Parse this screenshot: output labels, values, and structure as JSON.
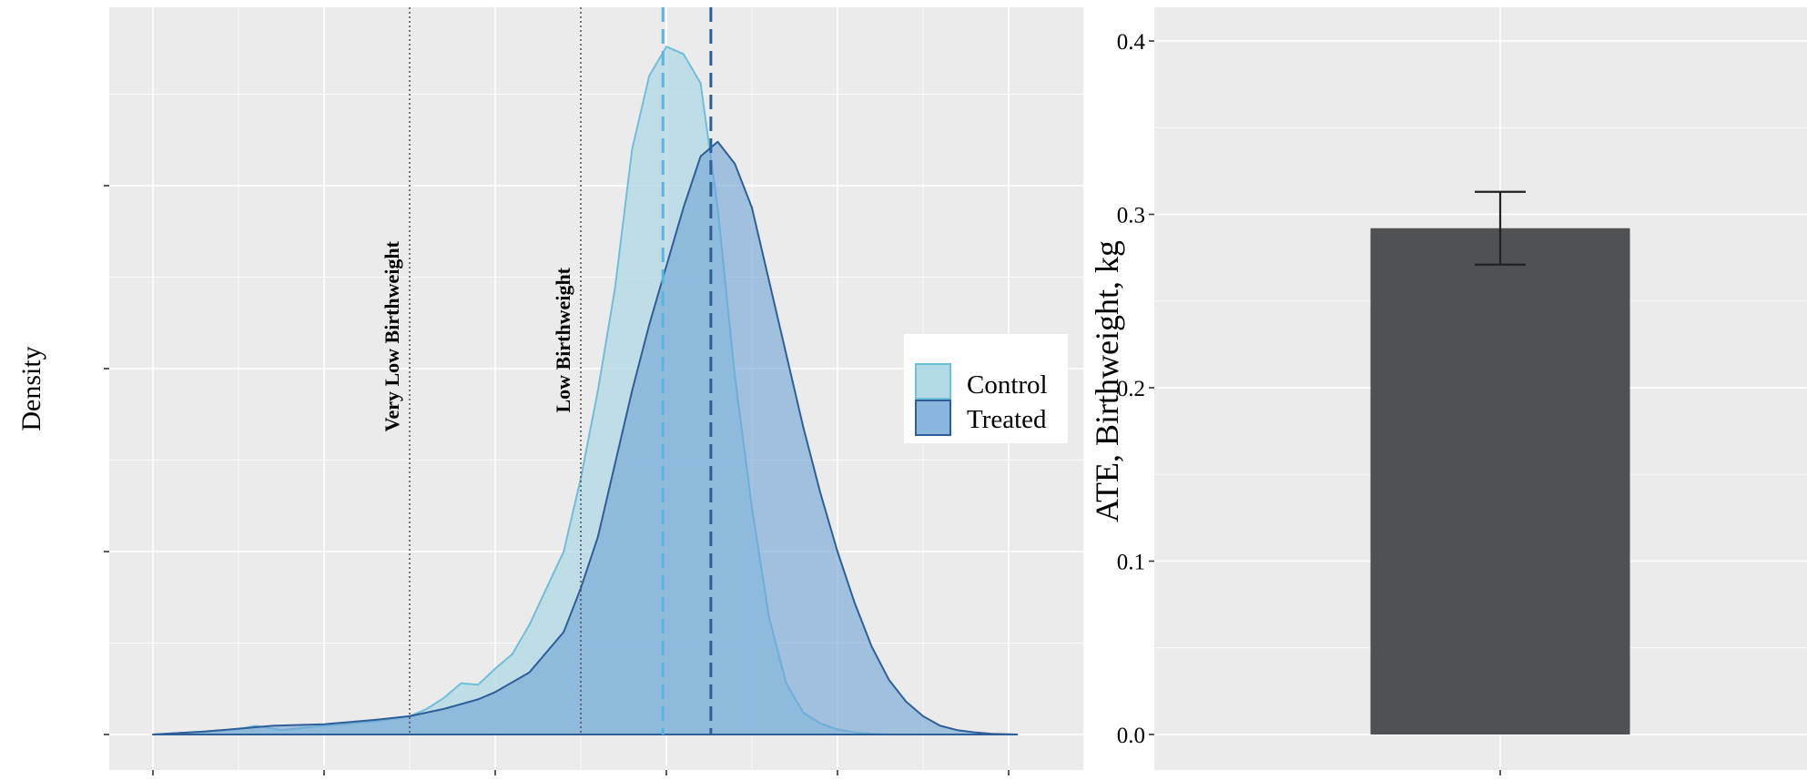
{
  "chart_data": [
    {
      "type": "area",
      "title": "",
      "xlabel": "",
      "ylabel": "Density",
      "xlim": [
        -0.2,
        5.2
      ],
      "ylim": [
        -0.01,
        1.0
      ],
      "grid": true,
      "legend_position": "right",
      "x_ticks": [
        0,
        1,
        2,
        3,
        4,
        5
      ],
      "y_ticks": [
        0,
        0.25,
        0.5,
        0.75
      ],
      "x_tick_labels_shown": false,
      "y_tick_labels_shown": false,
      "series": [
        {
          "name": "Control",
          "fill": "#b3dae6",
          "stroke": "#6fbfdb",
          "mean": 2.98,
          "x": [
            0.0,
            0.3,
            0.5,
            0.6,
            0.75,
            1.0,
            1.3,
            1.5,
            1.6,
            1.7,
            1.8,
            1.9,
            2.0,
            2.1,
            2.2,
            2.3,
            2.4,
            2.5,
            2.6,
            2.7,
            2.8,
            2.9,
            3.0,
            3.1,
            3.2,
            3.3,
            3.4,
            3.5,
            3.6,
            3.7,
            3.8,
            3.9,
            4.0,
            4.1,
            4.2,
            4.3
          ],
          "y": [
            0.0,
            0.004,
            0.007,
            0.012,
            0.006,
            0.012,
            0.018,
            0.025,
            0.035,
            0.05,
            0.07,
            0.068,
            0.09,
            0.11,
            0.15,
            0.2,
            0.25,
            0.35,
            0.47,
            0.61,
            0.8,
            0.9,
            0.94,
            0.93,
            0.89,
            0.72,
            0.49,
            0.31,
            0.16,
            0.07,
            0.03,
            0.015,
            0.007,
            0.003,
            0.001,
            0.0
          ]
        },
        {
          "name": "Treated",
          "fill": "#6ea4d6",
          "stroke": "#2f5f99",
          "mean": 3.26,
          "x": [
            0.0,
            0.3,
            0.5,
            0.7,
            1.0,
            1.3,
            1.5,
            1.7,
            1.9,
            2.0,
            2.2,
            2.4,
            2.5,
            2.6,
            2.7,
            2.8,
            2.9,
            3.0,
            3.1,
            3.2,
            3.3,
            3.4,
            3.5,
            3.6,
            3.7,
            3.8,
            3.9,
            4.0,
            4.1,
            4.2,
            4.3,
            4.4,
            4.5,
            4.6,
            4.7,
            4.8,
            4.9,
            5.05
          ],
          "y": [
            0.0,
            0.004,
            0.008,
            0.012,
            0.014,
            0.02,
            0.025,
            0.035,
            0.048,
            0.058,
            0.085,
            0.14,
            0.2,
            0.27,
            0.37,
            0.47,
            0.56,
            0.64,
            0.72,
            0.79,
            0.81,
            0.78,
            0.72,
            0.62,
            0.52,
            0.42,
            0.33,
            0.25,
            0.18,
            0.12,
            0.075,
            0.045,
            0.025,
            0.012,
            0.006,
            0.003,
            0.001,
            0.0
          ]
        }
      ],
      "reference_lines": [
        {
          "x": 1.5,
          "label": "Very Low Birthweight",
          "style": "dotted",
          "color": "#555555"
        },
        {
          "x": 2.5,
          "label": "Low Birthweight",
          "style": "dotted",
          "color": "#555555"
        }
      ],
      "mean_lines": [
        {
          "x": 2.98,
          "color": "#5ab4dc",
          "style": "dashed"
        },
        {
          "x": 3.26,
          "color": "#2f5f99",
          "style": "dashed"
        }
      ]
    },
    {
      "type": "bar",
      "title": "",
      "xlabel": "",
      "ylabel": "ATE, Birthweight, kg",
      "ylim": [
        -0.0,
        0.42
      ],
      "y_ticks": [
        0.0,
        0.1,
        0.2,
        0.3,
        0.4
      ],
      "y_tick_labels": [
        "0.0",
        "0.1",
        "0.2",
        "0.3",
        "0.4"
      ],
      "grid": true,
      "categories": [
        ""
      ],
      "values": [
        0.292
      ],
      "error_low": [
        0.271
      ],
      "error_high": [
        0.313
      ],
      "bar_color": "#505153"
    }
  ]
}
